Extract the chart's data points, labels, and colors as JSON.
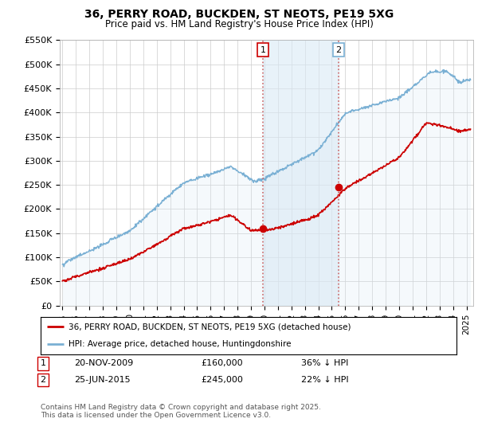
{
  "title": "36, PERRY ROAD, BUCKDEN, ST NEOTS, PE19 5XG",
  "subtitle": "Price paid vs. HM Land Registry's House Price Index (HPI)",
  "ylabel_ticks": [
    "£0",
    "£50K",
    "£100K",
    "£150K",
    "£200K",
    "£250K",
    "£300K",
    "£350K",
    "£400K",
    "£450K",
    "£500K",
    "£550K"
  ],
  "ylim": [
    0,
    550000
  ],
  "xlim_start": 1994.8,
  "xlim_end": 2025.5,
  "legend_line1": "36, PERRY ROAD, BUCKDEN, ST NEOTS, PE19 5XG (detached house)",
  "legend_line2": "HPI: Average price, detached house, Huntingdonshire",
  "marker1_date": 2009.9,
  "marker1_price": 160000,
  "marker1_label": "1",
  "marker2_date": 2015.5,
  "marker2_price": 245000,
  "marker2_label": "2",
  "footer": "Contains HM Land Registry data © Crown copyright and database right 2025.\nThis data is licensed under the Open Government Licence v3.0.",
  "line_color_paid": "#cc0000",
  "line_color_hpi": "#7ab0d4",
  "hpi_fill_color": "#daeaf5",
  "background_color": "#ffffff",
  "grid_color": "#cccccc",
  "shade_color": "#daeaf5",
  "vline_color": "#cc6666"
}
